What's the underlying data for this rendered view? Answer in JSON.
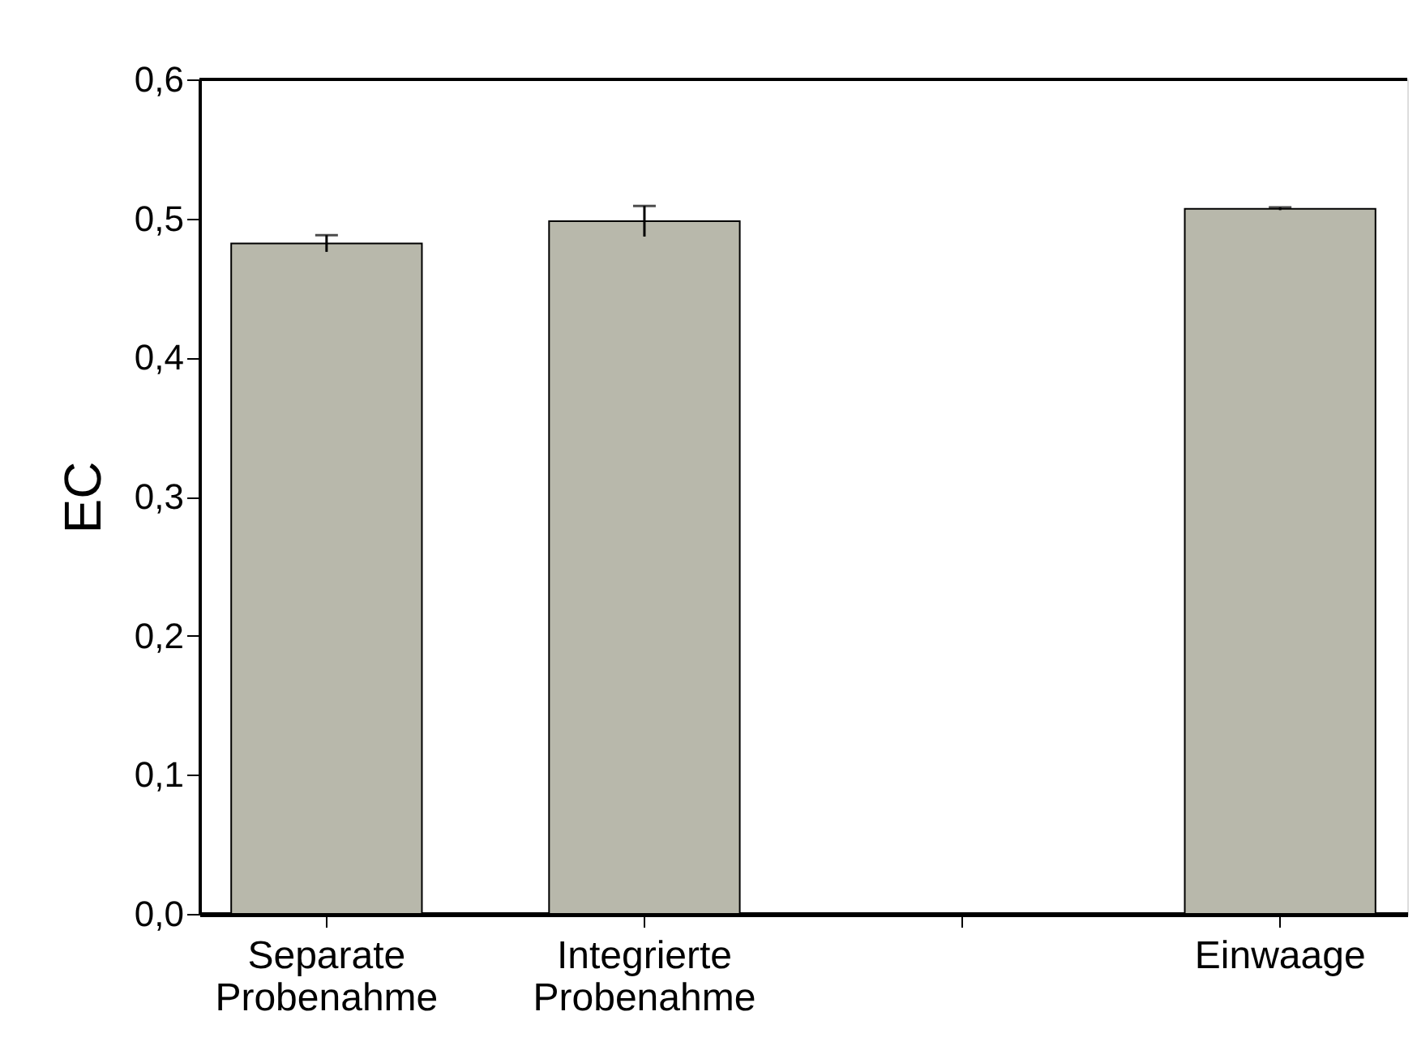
{
  "chart_data": {
    "type": "bar",
    "ylabel": "EC",
    "categories": [
      "Separate Probenahme",
      "Integrierte Probenahme",
      null,
      "Einwaage"
    ],
    "values": [
      0.482,
      0.498,
      null,
      0.507
    ],
    "errors": [
      0.006,
      0.011,
      null,
      0.001
    ],
    "color": "#b8b8ab",
    "ylim": [
      0,
      0.6
    ],
    "yticks": [
      {
        "value": 0,
        "label": "0,0"
      },
      {
        "value": 0.1,
        "label": "0,1"
      },
      {
        "value": 0.2,
        "label": "0,2"
      },
      {
        "value": 0.3,
        "label": "0,3"
      },
      {
        "value": 0.4,
        "label": "0,4"
      },
      {
        "value": 0.5,
        "label": "0,5"
      },
      {
        "value": 0.6,
        "label": "0,6"
      }
    ],
    "grid": false
  }
}
